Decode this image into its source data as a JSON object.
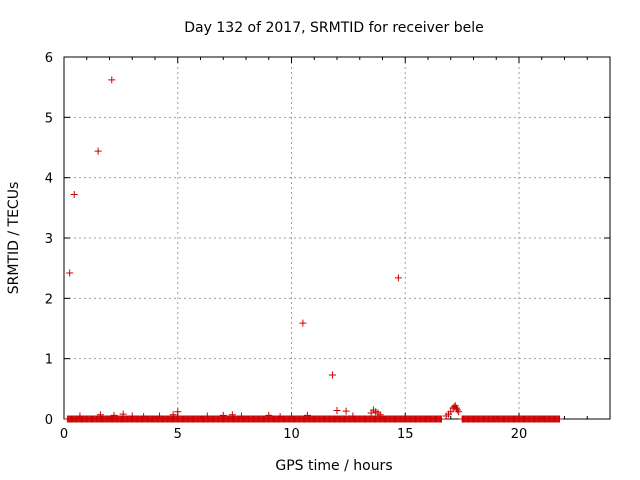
{
  "chart_data": {
    "type": "scatter",
    "title": "Day 132 of 2017, SRMTID for receiver bele",
    "xlabel": "GPS time / hours",
    "ylabel": "SRMTID / TECUs",
    "xlim": [
      0,
      24
    ],
    "ylim": [
      0,
      6
    ],
    "xticks": [
      0,
      5,
      10,
      15,
      20
    ],
    "yticks": [
      0,
      1,
      2,
      3,
      4,
      5,
      6
    ],
    "grid": true,
    "marker": "+",
    "color": "#cc0000",
    "series": [
      {
        "name": "SRMTID",
        "points": [
          [
            0.25,
            2.42
          ],
          [
            0.45,
            3.72
          ],
          [
            1.5,
            4.44
          ],
          [
            2.1,
            5.62
          ],
          [
            10.5,
            1.59
          ],
          [
            11.8,
            0.73
          ],
          [
            14.7,
            2.34
          ],
          [
            5.0,
            0.12
          ],
          [
            12.0,
            0.14
          ],
          [
            12.4,
            0.13
          ],
          [
            13.6,
            0.15
          ],
          [
            13.7,
            0.12
          ],
          [
            13.5,
            0.1
          ],
          [
            13.8,
            0.1
          ],
          [
            13.9,
            0.07
          ],
          [
            17.0,
            0.12
          ],
          [
            17.1,
            0.18
          ],
          [
            17.15,
            0.2
          ],
          [
            17.2,
            0.22
          ],
          [
            17.25,
            0.18
          ],
          [
            17.3,
            0.15
          ],
          [
            17.35,
            0.12
          ],
          [
            16.9,
            0.08
          ],
          [
            16.8,
            0.05
          ],
          [
            0.7,
            0.05
          ],
          [
            1.6,
            0.07
          ],
          [
            2.2,
            0.06
          ],
          [
            2.6,
            0.08
          ],
          [
            3.0,
            0.05
          ],
          [
            3.5,
            0.04
          ],
          [
            4.2,
            0.05
          ],
          [
            4.8,
            0.07
          ],
          [
            6.3,
            0.05
          ],
          [
            7.0,
            0.06
          ],
          [
            7.4,
            0.07
          ],
          [
            7.8,
            0.05
          ],
          [
            9.0,
            0.06
          ],
          [
            9.5,
            0.04
          ],
          [
            10.0,
            0.05
          ],
          [
            10.7,
            0.06
          ],
          [
            12.7,
            0.05
          ]
        ],
        "baseline_segments": [
          [
            0.15,
            16.6
          ],
          [
            17.5,
            21.8
          ]
        ],
        "baseline_value": 0
      }
    ]
  },
  "colors": {
    "marker": "#cc0000",
    "grid": "#a0a0a0",
    "axis": "#000000"
  }
}
